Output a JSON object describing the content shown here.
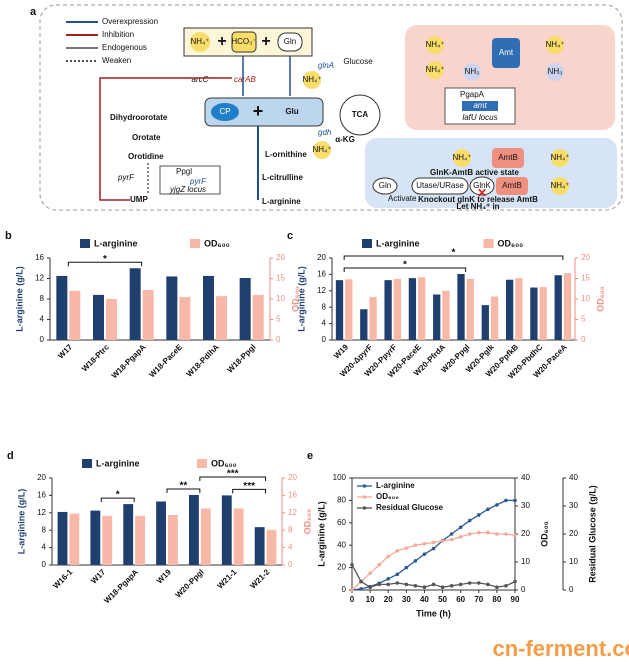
{
  "diagram": {
    "panel": "a",
    "legend": [
      "Overexpression",
      "Inhibition",
      "Endogenous",
      "Weaken"
    ],
    "nh4": "NH₄⁺",
    "hco3": "HCO₃⁻",
    "gln": "Gln",
    "plus": "+",
    "glucose": "Glucose",
    "tca": "TCA",
    "akg": "α-KG",
    "cp": "CP",
    "glu": "Glu",
    "arcC": "arcC",
    "carAB": "carAB",
    "glnA": "glnA",
    "gdh": "gdh",
    "dihydroorotate": "Dihydroorotate",
    "orotate": "Orotate",
    "orotidine": "Orotidine",
    "ump": "UMP",
    "pyrF": "pyrF",
    "ppgl": "Ppgl",
    "pyrF_gene": "pyrF",
    "yjgZ": "yjgZ locus",
    "ornithine": "L-ornithine",
    "citrulline": "L-citrulline",
    "arginine": "L-arginine",
    "amt": "Amt",
    "nh3": "NH₃",
    "pgapA": "PgapA",
    "amt_gene": "amt",
    "lafU": "lafU locus",
    "amtB": "AmtB",
    "active": "GlnK-AmtB active state",
    "utase": "Utase/URase",
    "glnK": "GlnK",
    "activate": "Activate",
    "knockout": "Knockout glnK to release AmtB",
    "letin": "Let NH₄⁺ in"
  },
  "chart_data": [
    {
      "type": "bar",
      "panel": "b",
      "ylabel": "L-arginine (g/L)",
      "y2label": "OD₆₀₀",
      "categories": [
        "W17",
        "W18-Ptrc",
        "W18-PgapA",
        "W18-PaceE",
        "W18-PdlhA",
        "W18-Ppgl"
      ],
      "series": [
        {
          "name": "L-arginine",
          "color": "#1f3f6e",
          "values": [
            12.5,
            8.8,
            14,
            12.4,
            12.5,
            12.1
          ]
        },
        {
          "name": "OD₆₀₀",
          "color": "#f7b8a8",
          "axis": "y2",
          "values": [
            12,
            10,
            12.2,
            10.5,
            10.7,
            11
          ]
        }
      ],
      "ylim": [
        0,
        16
      ],
      "yticks": [
        0,
        4,
        8,
        12,
        16
      ],
      "y2lim": [
        0,
        20
      ],
      "y2ticks": [
        0,
        5,
        10,
        15,
        20
      ],
      "annotations": [
        {
          "from": "W17",
          "to": "W18-PgapA",
          "label": "*"
        }
      ]
    },
    {
      "type": "bar",
      "panel": "c",
      "ylabel": "L-arginine (g/L)",
      "y2label": "OD₆₀₀",
      "categories": [
        "W19",
        "W20-ΔpyrF",
        "W20-PpyrF",
        "W20-PaceE",
        "W20-PfrdA",
        "W20-Ppgl",
        "W20-Pglk",
        "W20-PpfkB",
        "W20-PbdhC",
        "W20-PaceA"
      ],
      "series": [
        {
          "name": "L-arginine",
          "color": "#1f3f6e",
          "values": [
            14.6,
            7.5,
            14.6,
            15.1,
            11.1,
            16.1,
            8.5,
            14.7,
            12.8,
            15.8
          ]
        },
        {
          "name": "OD₆₀₀",
          "color": "#f7b8a8",
          "axis": "y2",
          "values": [
            14.8,
            10.5,
            14.9,
            15.3,
            12,
            14.9,
            10.6,
            15.1,
            12.9,
            16.3
          ]
        }
      ],
      "ylim": [
        0,
        20
      ],
      "yticks": [
        0,
        4,
        8,
        12,
        16,
        20
      ],
      "y2lim": [
        0,
        20
      ],
      "y2ticks": [
        0,
        5,
        10,
        15,
        20
      ],
      "annotations": [
        {
          "from": "W19",
          "to": "W20-Ppgl",
          "label": "*"
        },
        {
          "from": "W19",
          "to": "W20-PaceA",
          "label": "*"
        }
      ]
    },
    {
      "type": "bar",
      "panel": "d",
      "ylabel": "L-arginine (g/L)",
      "y2label": "OD₆₀₀",
      "categories": [
        "W16-1",
        "W17",
        "W18-PgapA",
        "W19",
        "W20-Ppgl",
        "W21-1",
        "W21-2"
      ],
      "series": [
        {
          "name": "L-arginine",
          "color": "#1f3f6e",
          "values": [
            12.2,
            12.5,
            14,
            14.6,
            16.1,
            16,
            8.7
          ]
        },
        {
          "name": "OD₆₀₀",
          "color": "#f7b8a8",
          "axis": "y2",
          "values": [
            11.8,
            11.3,
            11.3,
            11.5,
            13,
            13,
            8.1
          ]
        }
      ],
      "ylim": [
        0,
        20
      ],
      "yticks": [
        0,
        4,
        8,
        12,
        16,
        20
      ],
      "y2lim": [
        0,
        20
      ],
      "y2ticks": [
        0,
        4,
        8,
        12,
        16,
        20
      ],
      "annotations": [
        {
          "from": "W17",
          "to": "W18-PgapA",
          "label": "*"
        },
        {
          "from": "W19",
          "to": "W20-Ppgl",
          "label": "**"
        },
        {
          "from": "W21-1",
          "to": "W21-2",
          "label": "***"
        },
        {
          "from": "W20-Ppgl",
          "to": "W21-2",
          "label": "***"
        }
      ]
    },
    {
      "type": "line",
      "panel": "e",
      "xlabel": "Time (h)",
      "ylabel": "L-arginine (g/L)",
      "y2label": "OD₆₀₀",
      "y3label": "Residual Glucose (g/L)",
      "x": [
        0,
        5,
        10,
        15,
        20,
        25,
        30,
        35,
        40,
        45,
        50,
        55,
        60,
        65,
        70,
        75,
        80,
        85,
        90
      ],
      "series": [
        {
          "name": "L-arginine",
          "color": "#2b5c94",
          "values": [
            0,
            1,
            3,
            6,
            10,
            14,
            20,
            26,
            32,
            37,
            44,
            50,
            56,
            62,
            67,
            72,
            76,
            80,
            80
          ]
        },
        {
          "name": "OD₆₀₀",
          "color": "#f4a99a",
          "axis": "y2",
          "values": [
            0,
            3,
            6,
            9,
            12,
            14,
            15,
            16,
            16.5,
            17,
            17.5,
            18,
            19,
            20,
            20.5,
            20.5,
            20,
            20,
            19.5
          ]
        },
        {
          "name": "Residual Glucose",
          "color": "#555555",
          "axis": "y3",
          "values": [
            9,
            3,
            1,
            2,
            2,
            2.5,
            2,
            1.5,
            1,
            2,
            1,
            1.5,
            2,
            2.5,
            2.5,
            2,
            1,
            1.5,
            3
          ]
        }
      ],
      "xlim": [
        0,
        90
      ],
      "xticks": [
        0,
        10,
        20,
        30,
        40,
        50,
        60,
        70,
        80,
        90
      ],
      "ylim": [
        0,
        100
      ],
      "yticks": [
        0,
        20,
        40,
        60,
        80,
        100
      ],
      "y2lim": [
        0,
        40
      ],
      "y2ticks": [
        0,
        10,
        20,
        30,
        40
      ],
      "y3lim": [
        0,
        40
      ],
      "y3ticks": [
        0,
        10,
        20,
        30,
        40
      ]
    }
  ],
  "watermark": "cn-ferment.com"
}
